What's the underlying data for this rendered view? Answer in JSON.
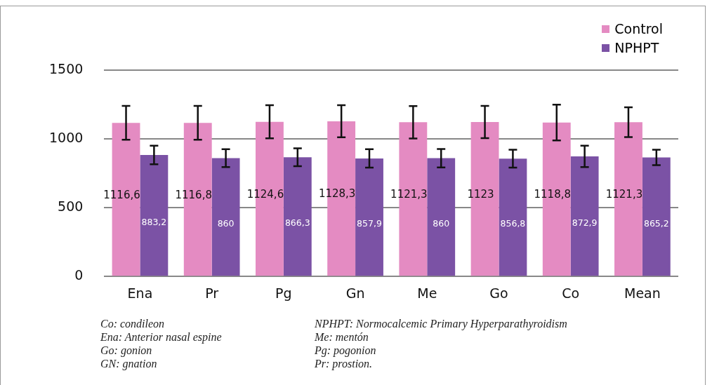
{
  "chart_data": {
    "type": "bar",
    "categories": [
      "Ena",
      "Pr",
      "Pg",
      "Gn",
      "Me",
      "Go",
      "Co",
      "Mean"
    ],
    "series": [
      {
        "name": "Control",
        "color": "#e48bc2",
        "values": [
          1116.6,
          1116.8,
          1124.6,
          1128.3,
          1121.3,
          1123,
          1118.8,
          1121.3
        ],
        "errors": [
          123,
          123,
          120,
          117,
          118,
          117,
          130,
          108
        ],
        "value_labels": [
          "1116,6",
          "1116,8",
          "1124,6",
          "1128,3",
          "1121,3",
          "1123",
          "1118,8",
          "1121,3"
        ]
      },
      {
        "name": "NPHPT",
        "color": "#7b52a5",
        "values": [
          883.2,
          860,
          866.3,
          857.9,
          860,
          856.8,
          872.9,
          865.2
        ],
        "errors": [
          68,
          65,
          65,
          67,
          67,
          65,
          78,
          56
        ],
        "value_labels": [
          "883,2",
          "860",
          "866,3",
          "857,9",
          "860",
          "856,8",
          "872,9",
          "865,2"
        ]
      }
    ],
    "ylim": [
      0,
      1500
    ],
    "yticks": [
      0,
      500,
      1000,
      1500
    ],
    "grid": "y",
    "legend": "top right",
    "annotations": [
      "Co: condileon",
      "Ena: Anterior nasal espine",
      "Go: gonion",
      "GN: gnation",
      "NPHPT: Normocalcemic Primary Hyperparathyroidism",
      "Me: mentón",
      "Pg: pogonion",
      "Pr: prostion."
    ]
  }
}
